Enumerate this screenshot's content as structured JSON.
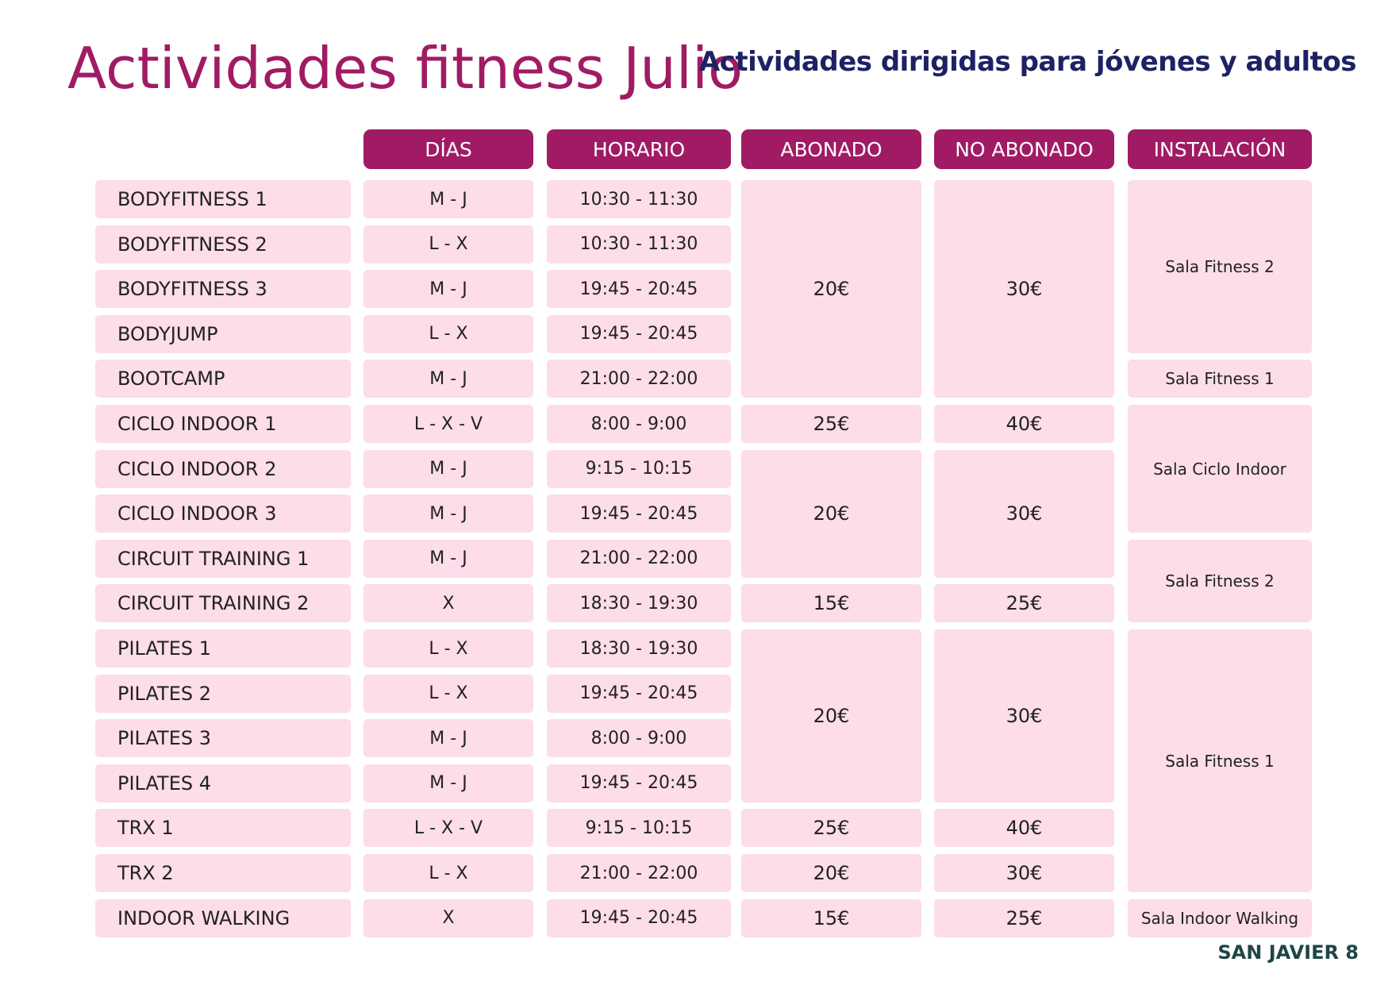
{
  "title": "Actividades fitness Julio",
  "subtitle": "Actividades dirigidas para jóvenes y adultos",
  "footer": "SAN JAVIER 8",
  "colors": {
    "accent": "#a01b64",
    "cell_bg": "#fcdde9",
    "subtitle": "#1e2163",
    "footer": "#1f4547"
  },
  "headers": [
    "DÍAS",
    "HORARIO",
    "ABONADO",
    "NO ABONADO",
    "INSTALACIÓN"
  ],
  "activities": [
    {
      "name": "BODYFITNESS 1",
      "dias": "M - J",
      "horario": "10:30 - 11:30"
    },
    {
      "name": "BODYFITNESS 2",
      "dias": "L - X",
      "horario": "10:30 - 11:30"
    },
    {
      "name": "BODYFITNESS 3",
      "dias": "M - J",
      "horario": "19:45 - 20:45"
    },
    {
      "name": "BODYJUMP",
      "dias": "L - X",
      "horario": "19:45 - 20:45"
    },
    {
      "name": "BOOTCAMP",
      "dias": "M - J",
      "horario": "21:00 - 22:00"
    },
    {
      "name": "CICLO INDOOR 1",
      "dias": "L - X - V",
      "horario": "8:00 - 9:00"
    },
    {
      "name": "CICLO INDOOR 2",
      "dias": "M - J",
      "horario": "9:15 - 10:15"
    },
    {
      "name": "CICLO INDOOR 3",
      "dias": "M - J",
      "horario": "19:45 - 20:45"
    },
    {
      "name": "CIRCUIT TRAINING 1",
      "dias": "M - J",
      "horario": "21:00 - 22:00"
    },
    {
      "name": "CIRCUIT TRAINING 2",
      "dias": "X",
      "horario": "18:30 - 19:30"
    },
    {
      "name": "PILATES 1",
      "dias": "L - X",
      "horario": "18:30 - 19:30"
    },
    {
      "name": "PILATES 2",
      "dias": "L - X",
      "horario": "19:45 - 20:45"
    },
    {
      "name": "PILATES 3",
      "dias": "M - J",
      "horario": "8:00 - 9:00"
    },
    {
      "name": "PILATES 4",
      "dias": "M - J",
      "horario": "19:45 - 20:45"
    },
    {
      "name": "TRX 1",
      "dias": "L - X - V",
      "horario": "9:15 - 10:15"
    },
    {
      "name": "TRX 2",
      "dias": "L - X",
      "horario": "21:00 - 22:00"
    },
    {
      "name": "INDOOR WALKING",
      "dias": "X",
      "horario": "19:45 - 20:45"
    }
  ],
  "price_groups": [
    {
      "first_row": 0,
      "last_row": 4,
      "abonado": "20€",
      "no_abonado": "30€"
    },
    {
      "first_row": 5,
      "last_row": 5,
      "abonado": "25€",
      "no_abonado": "40€"
    },
    {
      "first_row": 6,
      "last_row": 8,
      "abonado": "20€",
      "no_abonado": "30€"
    },
    {
      "first_row": 9,
      "last_row": 9,
      "abonado": "15€",
      "no_abonado": "25€"
    },
    {
      "first_row": 10,
      "last_row": 13,
      "abonado": "20€",
      "no_abonado": "30€"
    },
    {
      "first_row": 14,
      "last_row": 14,
      "abonado": "25€",
      "no_abonado": "40€"
    },
    {
      "first_row": 15,
      "last_row": 15,
      "abonado": "20€",
      "no_abonado": "30€"
    },
    {
      "first_row": 16,
      "last_row": 16,
      "abonado": "15€",
      "no_abonado": "25€"
    }
  ],
  "location_groups": [
    {
      "first_row": 0,
      "last_row": 3,
      "location": "Sala Fitness 2"
    },
    {
      "first_row": 4,
      "last_row": 4,
      "location": "Sala Fitness 1"
    },
    {
      "first_row": 5,
      "last_row": 7,
      "location": "Sala Ciclo Indoor"
    },
    {
      "first_row": 8,
      "last_row": 9,
      "location": "Sala Fitness 2"
    },
    {
      "first_row": 10,
      "last_row": 15,
      "location": "Sala Fitness 1"
    },
    {
      "first_row": 16,
      "last_row": 16,
      "location": "Sala Indoor Walking"
    }
  ]
}
